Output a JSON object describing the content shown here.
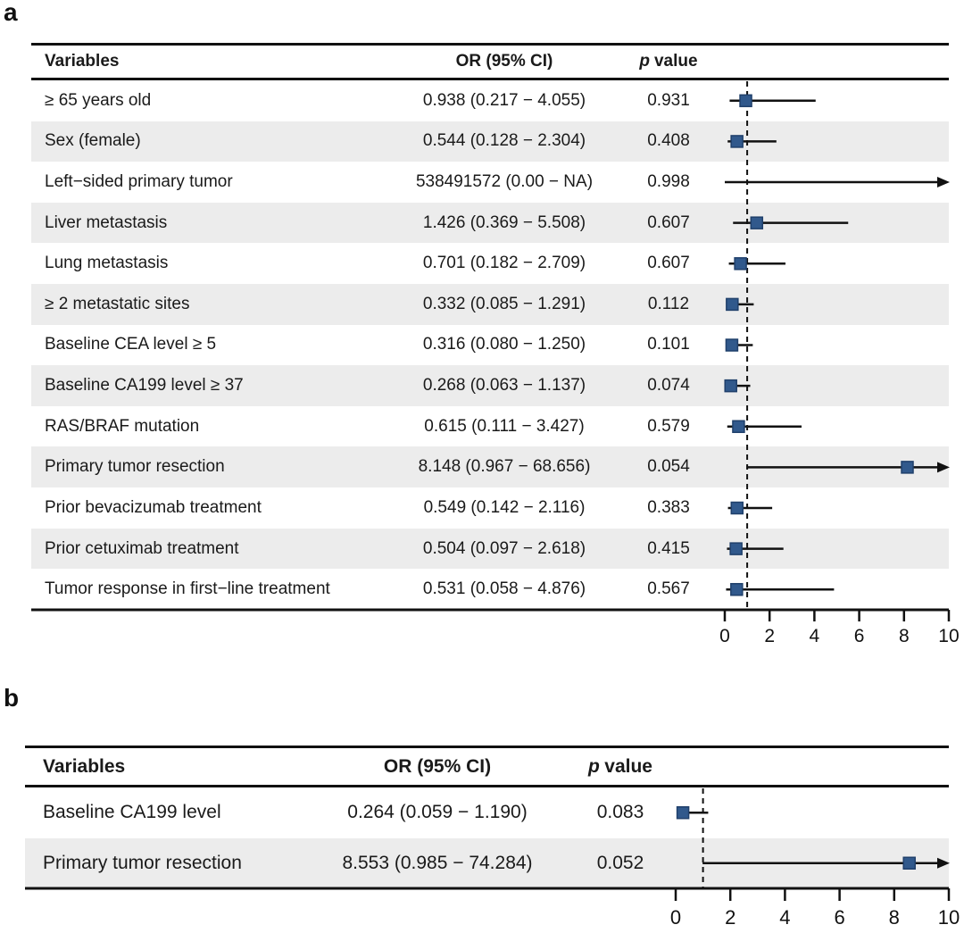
{
  "figure": {
    "panel_a_label": "a",
    "panel_b_label": "b"
  },
  "colors": {
    "marker_fill": "#31598c",
    "marker_stroke": "#20406b",
    "stripe": "#ececec",
    "line": "#111111",
    "text": "#1a1a1a"
  },
  "panels": [
    {
      "label": "a",
      "header": {
        "variables": "Variables",
        "or_ci": "OR (95% CI)",
        "p_italic": "p",
        "p_rest": "value"
      },
      "axis": {
        "min": 0,
        "max": 10,
        "ticks": [
          0,
          2,
          4,
          6,
          8,
          10
        ],
        "refline": 1
      },
      "rows": [
        {
          "variable": "≥ 65 years old",
          "or_ci": "0.938 (0.217 − 4.055)",
          "p": "0.931",
          "est": 0.938,
          "lo": 0.217,
          "hi": 4.055,
          "arrow": false,
          "marker": true
        },
        {
          "variable": "Sex (female)",
          "or_ci": "0.544 (0.128 − 2.304)",
          "p": "0.408",
          "est": 0.544,
          "lo": 0.128,
          "hi": 2.304,
          "arrow": false,
          "marker": true
        },
        {
          "variable": "Left−sided primary tumor",
          "or_ci": "538491572 (0.00 − NA)",
          "p": "0.998",
          "est": 538491572,
          "lo": 0.0,
          "hi": null,
          "arrow": true,
          "marker": false
        },
        {
          "variable": "Liver metastasis",
          "or_ci": "1.426 (0.369 − 5.508)",
          "p": "0.607",
          "est": 1.426,
          "lo": 0.369,
          "hi": 5.508,
          "arrow": false,
          "marker": true
        },
        {
          "variable": "Lung metastasis",
          "or_ci": "0.701 (0.182 − 2.709)",
          "p": "0.607",
          "est": 0.701,
          "lo": 0.182,
          "hi": 2.709,
          "arrow": false,
          "marker": true
        },
        {
          "variable": "≥ 2 metastatic sites",
          "or_ci": "0.332 (0.085 − 1.291)",
          "p": "0.112",
          "est": 0.332,
          "lo": 0.085,
          "hi": 1.291,
          "arrow": false,
          "marker": true
        },
        {
          "variable": "Baseline CEA level ≥ 5",
          "or_ci": "0.316 (0.080 − 1.250)",
          "p": "0.101",
          "est": 0.316,
          "lo": 0.08,
          "hi": 1.25,
          "arrow": false,
          "marker": true
        },
        {
          "variable": "Baseline CA199 level ≥ 37",
          "or_ci": "0.268 (0.063 − 1.137)",
          "p": "0.074",
          "est": 0.268,
          "lo": 0.063,
          "hi": 1.137,
          "arrow": false,
          "marker": true
        },
        {
          "variable": "RAS/BRAF mutation",
          "or_ci": "0.615 (0.111 − 3.427)",
          "p": "0.579",
          "est": 0.615,
          "lo": 0.111,
          "hi": 3.427,
          "arrow": false,
          "marker": true
        },
        {
          "variable": "Primary tumor resection",
          "or_ci": "8.148 (0.967 − 68.656)",
          "p": "0.054",
          "est": 8.148,
          "lo": 0.967,
          "hi": 68.656,
          "arrow": true,
          "marker": true
        },
        {
          "variable": "Prior bevacizumab treatment",
          "or_ci": "0.549 (0.142 − 2.116)",
          "p": "0.383",
          "est": 0.549,
          "lo": 0.142,
          "hi": 2.116,
          "arrow": false,
          "marker": true
        },
        {
          "variable": "Prior cetuximab treatment",
          "or_ci": "0.504 (0.097 − 2.618)",
          "p": "0.415",
          "est": 0.504,
          "lo": 0.097,
          "hi": 2.618,
          "arrow": false,
          "marker": true
        },
        {
          "variable": "Tumor response in first−line treatment",
          "or_ci": "0.531 (0.058 − 4.876)",
          "p": "0.567",
          "est": 0.531,
          "lo": 0.058,
          "hi": 4.876,
          "arrow": false,
          "marker": true
        }
      ]
    },
    {
      "label": "b",
      "header": {
        "variables": "Variables",
        "or_ci": "OR (95% CI)",
        "p_italic": "p",
        "p_rest": "value"
      },
      "axis": {
        "min": 0,
        "max": 10,
        "ticks": [
          0,
          2,
          4,
          6,
          8,
          10
        ],
        "refline": 1
      },
      "rows": [
        {
          "variable": "Baseline CA199 level",
          "or_ci": "0.264 (0.059 − 1.190)",
          "p": "0.083",
          "est": 0.264,
          "lo": 0.059,
          "hi": 1.19,
          "arrow": false,
          "marker": true
        },
        {
          "variable": "Primary tumor resection",
          "or_ci": "8.553 (0.985 − 74.284)",
          "p": "0.052",
          "est": 8.553,
          "lo": 0.985,
          "hi": 74.284,
          "arrow": true,
          "marker": true
        }
      ]
    }
  ],
  "chart_data": [
    {
      "type": "scatter",
      "subtype": "forest-plot",
      "title": "a",
      "xlabel": "",
      "xlim": [
        0,
        10
      ],
      "xticks": [
        0,
        2,
        4,
        6,
        8,
        10
      ],
      "reference_line": 1,
      "legend": "none",
      "grid": false,
      "columns": [
        "Variables",
        "OR (95% CI)",
        "p value"
      ],
      "categories": [
        "≥ 65 years old",
        "Sex (female)",
        "Left−sided primary tumor",
        "Liver metastasis",
        "Lung metastasis",
        "≥ 2 metastatic sites",
        "Baseline CEA level ≥ 5",
        "Baseline CA199 level ≥ 37",
        "RAS/BRAF mutation",
        "Primary tumor resection",
        "Prior bevacizumab treatment",
        "Prior cetuximab treatment",
        "Tumor response in first−line treatment"
      ],
      "or": [
        0.938,
        0.544,
        538491572,
        1.426,
        0.701,
        0.332,
        0.316,
        0.268,
        0.615,
        8.148,
        0.549,
        0.504,
        0.531
      ],
      "ci_low": [
        0.217,
        0.128,
        0.0,
        0.369,
        0.182,
        0.085,
        0.08,
        0.063,
        0.111,
        0.967,
        0.142,
        0.097,
        0.058
      ],
      "ci_high": [
        4.055,
        2.304,
        null,
        5.508,
        2.709,
        1.291,
        1.25,
        1.137,
        3.427,
        68.656,
        2.116,
        2.618,
        4.876
      ],
      "p_values": [
        0.931,
        0.408,
        0.998,
        0.607,
        0.607,
        0.112,
        0.101,
        0.074,
        0.579,
        0.054,
        0.383,
        0.415,
        0.567
      ]
    },
    {
      "type": "scatter",
      "subtype": "forest-plot",
      "title": "b",
      "xlabel": "",
      "xlim": [
        0,
        10
      ],
      "xticks": [
        0,
        2,
        4,
        6,
        8,
        10
      ],
      "reference_line": 1,
      "legend": "none",
      "grid": false,
      "columns": [
        "Variables",
        "OR (95% CI)",
        "p value"
      ],
      "categories": [
        "Baseline CA199 level",
        "Primary tumor resection"
      ],
      "or": [
        0.264,
        8.553
      ],
      "ci_low": [
        0.059,
        0.985
      ],
      "ci_high": [
        1.19,
        74.284
      ],
      "p_values": [
        0.083,
        0.052
      ]
    }
  ]
}
